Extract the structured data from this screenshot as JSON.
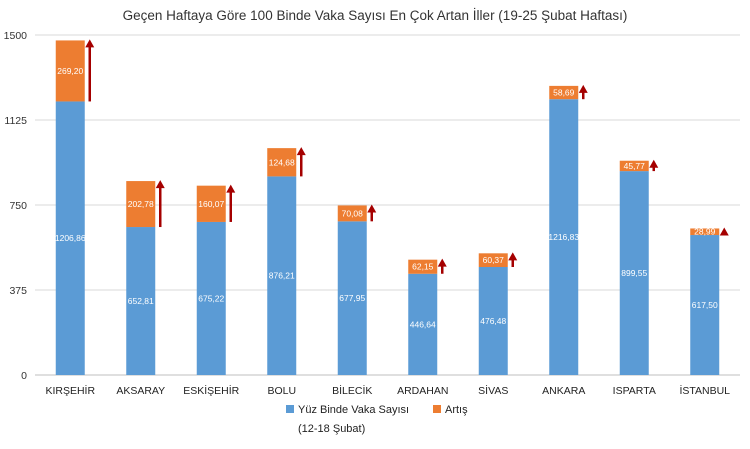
{
  "chart_data": {
    "type": "bar",
    "stacked": true,
    "title": "Geçen Haftaya Göre 100 Binde Vaka Sayısı En Çok Artan İller (19-25 Şubat Haftası)",
    "categories": [
      "KIRŞEHİR",
      "AKSARAY",
      "ESKİŞEHİR",
      "BOLU",
      "BİLECİK",
      "ARDAHAN",
      "SİVAS",
      "ANKARA",
      "ISPARTA",
      "İSTANBUL"
    ],
    "series": [
      {
        "name": "Yüz Binde Vaka Sayısı (12-18 Şubat)",
        "legend_lines": [
          "Yüz Binde Vaka Sayısı",
          "(12-18 Şubat)"
        ],
        "color": "#5b9bd5",
        "values": [
          1206.86,
          652.81,
          675.22,
          876.21,
          677.95,
          446.64,
          476.48,
          1216.83,
          899.55,
          617.5
        ],
        "labels": [
          "1206,86",
          "652,81",
          "675,22",
          "876,21",
          "677,95",
          "446,64",
          "476,48",
          "1216,83",
          "899,55",
          "617,50"
        ]
      },
      {
        "name": "Artış",
        "color": "#ed7d31",
        "values": [
          269.2,
          202.78,
          160.07,
          124.68,
          70.08,
          62.15,
          60.37,
          58.69,
          45.77,
          28.99
        ],
        "labels": [
          "269,20",
          "202,78",
          "160,07",
          "124,68",
          "70,08",
          "62,15",
          "60,37",
          "58,69",
          "45,77",
          "28,99"
        ]
      }
    ],
    "yticks": [
      0,
      375,
      750,
      1125,
      1500
    ],
    "ylim": [
      0,
      1500
    ],
    "grid": true,
    "legend": "bottom",
    "arrow_color": "#a50000"
  }
}
